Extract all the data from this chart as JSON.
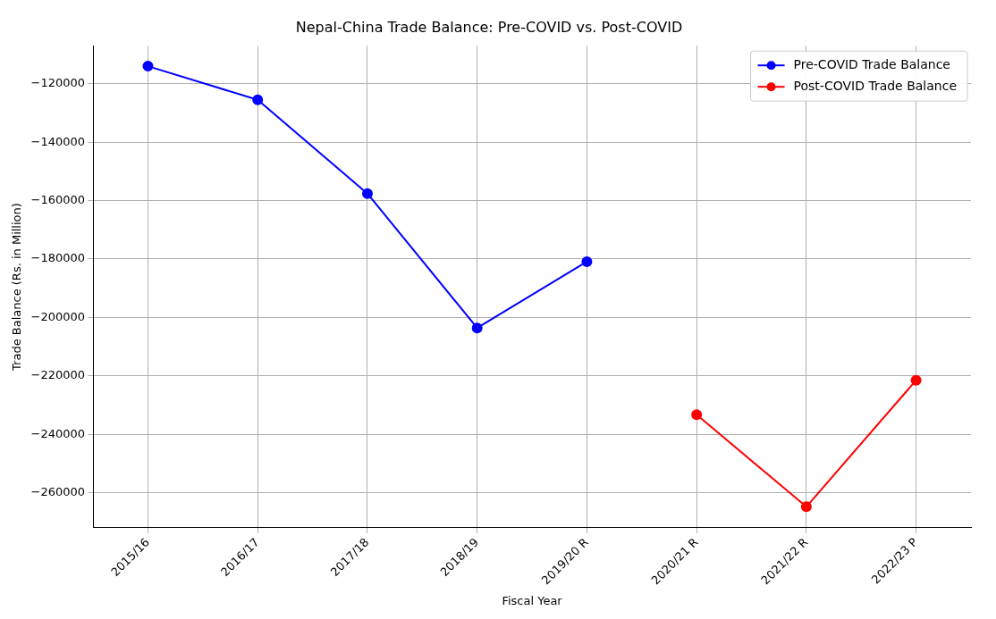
{
  "chart_data": {
    "type": "line",
    "title": "Nepal-China Trade Balance: Pre-COVID vs. Post-COVID",
    "xlabel": "Fiscal Year",
    "ylabel": "Trade Balance (Rs. in Million)",
    "categories": [
      "2015/16",
      "2016/17",
      "2017/18",
      "2018/19",
      "2019/20 R",
      "2020/21 R",
      "2021/22 R",
      "2022/23 P"
    ],
    "series": [
      {
        "name": "Pre-COVID Trade Balance",
        "color": "#0000ff",
        "values": [
          -114000,
          -125500,
          -157600,
          -203600,
          -180900,
          null,
          null,
          null
        ]
      },
      {
        "name": "Post-COVID Trade Balance",
        "color": "#ff0000",
        "values": [
          null,
          null,
          null,
          null,
          null,
          -233300,
          -264800,
          -221500
        ]
      }
    ],
    "ylim": [
      -272000,
      -107000
    ],
    "yticks": [
      -120000,
      -140000,
      -160000,
      -180000,
      -200000,
      -220000,
      -240000,
      -260000
    ],
    "grid": true,
    "legend": "top right",
    "marker": "circle",
    "line_style": "solid"
  }
}
